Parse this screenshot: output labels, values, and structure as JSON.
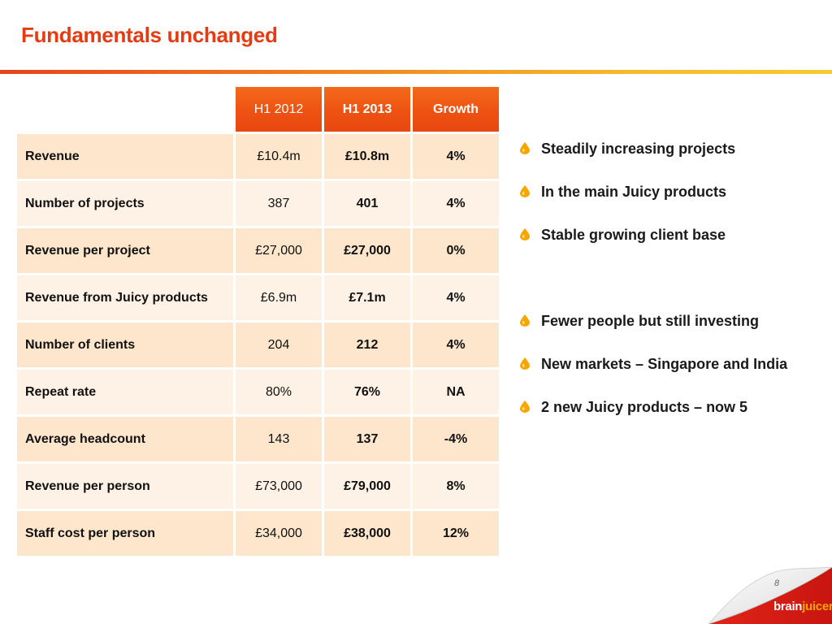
{
  "slide": {
    "title": "Fundamentals unchanged",
    "page_number": "8"
  },
  "table": {
    "headers": [
      "",
      "H1 2012",
      "H1 2013",
      "Growth"
    ],
    "rows": [
      {
        "label": "Revenue",
        "h1_2012": "£10.4m",
        "h1_2013": "£10.8m",
        "growth": "4%"
      },
      {
        "label": "Number of projects",
        "h1_2012": "387",
        "h1_2013": "401",
        "growth": "4%"
      },
      {
        "label": "Revenue per project",
        "h1_2012": "£27,000",
        "h1_2013": "£27,000",
        "growth": "0%"
      },
      {
        "label": "Revenue from Juicy products",
        "h1_2012": "£6.9m",
        "h1_2013": "£7.1m",
        "growth": "4%"
      },
      {
        "label": "Number of clients",
        "h1_2012": "204",
        "h1_2013": "212",
        "growth": "4%"
      },
      {
        "label": "Repeat rate",
        "h1_2012": "80%",
        "h1_2013": "76%",
        "growth": "NA"
      },
      {
        "label": "Average headcount",
        "h1_2012": "143",
        "h1_2013": "137",
        "growth": "-4%"
      },
      {
        "label": "Revenue per person",
        "h1_2012": "£73,000",
        "h1_2013": "£79,000",
        "growth": "8%"
      },
      {
        "label": "Staff cost per person",
        "h1_2012": "£34,000",
        "h1_2013": "£38,000",
        "growth": "12%"
      }
    ]
  },
  "bullets": [
    {
      "text": "Steadily increasing projects",
      "icon": "juice-drop-icon"
    },
    {
      "text": "In the main Juicy products",
      "icon": "juice-drop-icon"
    },
    {
      "text": "Stable growing client base",
      "icon": "juice-drop-icon"
    },
    {
      "text": "Fewer people but still investing",
      "icon": "juice-drop-icon"
    },
    {
      "text": "New markets – Singapore and India",
      "icon": "juice-drop-icon"
    },
    {
      "text": "2 new Juicy products – now 5",
      "icon": "juice-drop-icon"
    }
  ],
  "logo": {
    "brain": "brain",
    "juicer": "juicer"
  },
  "colors": {
    "title": "#e53b13",
    "header_bg": "#ee5212",
    "row_dark": "#fde6cc",
    "row_light": "#fef2e6",
    "drop": "#f7a600"
  }
}
